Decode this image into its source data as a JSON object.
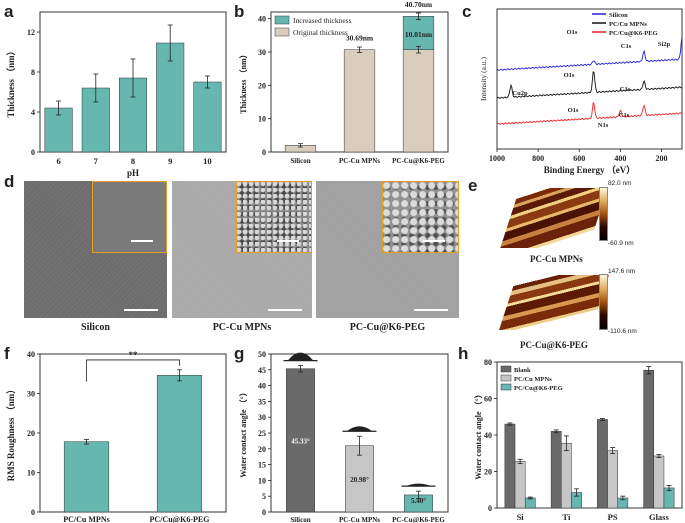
{
  "panel_labels": {
    "a": "a",
    "b": "b",
    "c": "c",
    "d": "d",
    "e": "e",
    "f": "f",
    "g": "g",
    "h": "h"
  },
  "chart_data": [
    {
      "id": "a",
      "type": "bar",
      "title": "",
      "xlabel": "pH",
      "ylabel": "Thickness （nm）",
      "categories": [
        "6",
        "7",
        "8",
        "9",
        "10"
      ],
      "values": [
        4.4,
        6.4,
        7.4,
        10.9,
        7.0
      ],
      "errors": [
        0.7,
        1.4,
        1.9,
        1.8,
        0.6
      ],
      "ylim": [
        0,
        14
      ],
      "yticks": [
        "0",
        "4",
        "8",
        "12"
      ],
      "bar_color": "#66b7af"
    },
    {
      "id": "b",
      "type": "bar",
      "title": "",
      "xlabel": "",
      "ylabel": "Thickness （nm）",
      "categories": [
        "Silicon",
        "PC-Cu MPNs",
        "PC-Cu@K6-PEG"
      ],
      "series": [
        {
          "name": "Original thickness",
          "values": [
            2.0,
            30.69,
            30.69
          ],
          "color": "#d9cdbd"
        },
        {
          "name": "Increased thickness",
          "values": [
            0,
            0,
            10.01
          ],
          "color": "#66b7af"
        }
      ],
      "errors": [
        0.5,
        0.8,
        1.0
      ],
      "ylim": [
        0,
        42
      ],
      "yticks": [
        "0",
        "10",
        "20",
        "30",
        "40"
      ],
      "labels": {
        "b1": "30.69nm",
        "b2_top": "40.70nm",
        "b2_inc": "10.01nm"
      }
    },
    {
      "id": "c",
      "type": "line",
      "title": "",
      "xlabel": "Binding Energy （eV）",
      "ylabel": "Intensity (a.u.)",
      "xlim": [
        1000,
        100
      ],
      "xticks": [
        "1000",
        "800",
        "600",
        "400",
        "200"
      ],
      "series": [
        {
          "name": "Silicon",
          "color": "#2222dd"
        },
        {
          "name": "PC/Cu MPNs",
          "color": "#111111"
        },
        {
          "name": "PC/Cu@K6-PEG",
          "color": "#ee2222"
        }
      ],
      "annotations": [
        "O1s",
        "C1s",
        "Si2p",
        "O1s",
        "Cu2p",
        "C1s",
        "O1s",
        "N1s",
        "C1s"
      ]
    },
    {
      "id": "f",
      "type": "bar",
      "title": "",
      "xlabel": "",
      "ylabel": "RMS Roughness （nm）",
      "categories": [
        "PC/Cu MPNs",
        "PC/Cu@K6-PEG"
      ],
      "values": [
        17.8,
        34.6
      ],
      "errors": [
        0.6,
        1.4
      ],
      "ylim": [
        0,
        40
      ],
      "yticks": [
        "0",
        "10",
        "20",
        "30",
        "40"
      ],
      "significance": "**",
      "bar_color": "#66b7af"
    },
    {
      "id": "g",
      "type": "bar",
      "title": "",
      "xlabel": "",
      "ylabel": "Water contact angle （°）",
      "categories": [
        "Silicon",
        "PC-Cu MPNs",
        "PC-Cu@K6-PEG"
      ],
      "values": [
        45.33,
        20.98,
        5.4
      ],
      "errors": [
        1.0,
        3.0,
        1.2
      ],
      "ylim": [
        0,
        50
      ],
      "yticks": [
        "0",
        "5",
        "10",
        "15",
        "20",
        "25",
        "30",
        "35",
        "40",
        "45",
        "50"
      ],
      "colors": [
        "#6a6a6a",
        "#c6c6c6",
        "#66b7af"
      ],
      "labels": [
        "45.33°",
        "20.98°",
        "5.40°"
      ]
    },
    {
      "id": "h",
      "type": "bar",
      "title": "",
      "xlabel": "",
      "ylabel": "Water contact angle （°）",
      "categories": [
        "Si",
        "Ti",
        "PS",
        "Glass"
      ],
      "series": [
        {
          "name": "Blank",
          "values": [
            46,
            42,
            48.5,
            75.5
          ],
          "errors": [
            0.6,
            0.8,
            0.5,
            2.0
          ],
          "color": "#6a6a6a"
        },
        {
          "name": "PC/Cu MPNs",
          "values": [
            25.5,
            35.5,
            31.5,
            28.5
          ],
          "errors": [
            1.2,
            4.0,
            1.6,
            0.8
          ],
          "color": "#c6c6c6"
        },
        {
          "name": "PC/Cu@K6-PEG",
          "values": [
            5.5,
            8.5,
            5.5,
            11
          ],
          "errors": [
            0.5,
            2.0,
            1.0,
            1.4
          ],
          "color": "#66b7af"
        }
      ],
      "ylim": [
        0,
        80
      ],
      "yticks": [
        "0",
        "20",
        "40",
        "60",
        "80"
      ]
    }
  ],
  "sem": {
    "labels": [
      "Silicon",
      "PC-Cu MPNs",
      "PC-Cu@K6-PEG"
    ]
  },
  "afm": {
    "items": [
      {
        "label": "PC-Cu MPNs",
        "max": "82.0 nm",
        "min": "-60.9 nm"
      },
      {
        "label": "PC-Cu@K6-PEG",
        "max": "147.6 nm",
        "min": "-110.6 nm"
      }
    ]
  }
}
